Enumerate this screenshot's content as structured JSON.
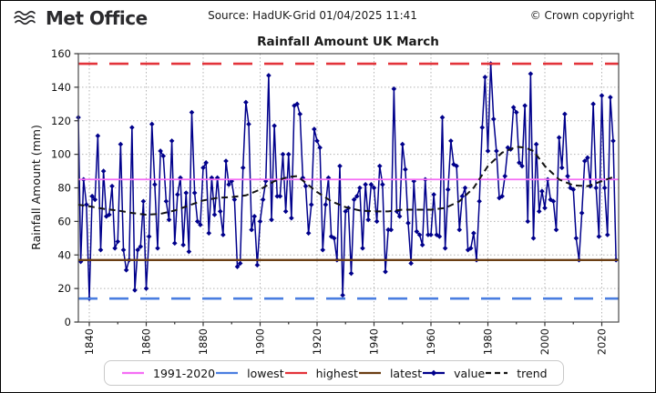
{
  "header": {
    "logo": "Met Office",
    "source": "Source: HadUK-Grid 01/04/2025 11:41",
    "copyright": "© Crown copyright"
  },
  "chart_data": {
    "type": "line",
    "title": "Rainfall Amount UK March",
    "xlabel": "",
    "ylabel": "Rainfall Amount (mm)",
    "ylim": [
      0,
      160
    ],
    "xlim": [
      1836,
      2026
    ],
    "yticks": [
      0,
      20,
      40,
      60,
      80,
      100,
      120,
      140,
      160
    ],
    "xticks": [
      1840,
      1860,
      1880,
      1900,
      1920,
      1940,
      1960,
      1980,
      2000,
      2020
    ],
    "grid": true,
    "legend_position": "bottom",
    "reference_lines": [
      {
        "label": "1991-2020",
        "value": 85,
        "color": "#f56ef5",
        "style": "solid"
      },
      {
        "label": "lowest",
        "value": 14,
        "color": "#4a7ee0",
        "style": "dashed"
      },
      {
        "label": "highest",
        "value": 154,
        "color": "#e3333a",
        "style": "dashed"
      },
      {
        "label": "latest",
        "value": 37,
        "color": "#6b3e13",
        "style": "solid"
      }
    ],
    "series": [
      {
        "name": "value",
        "color": "#00008b",
        "style": "solid",
        "marker": "diamond",
        "x_start": 1836,
        "x_end": 2025,
        "values": [
          122,
          36,
          85,
          70,
          14,
          75,
          73,
          111,
          43,
          90,
          63,
          64,
          81,
          44,
          48,
          106,
          43,
          31,
          37,
          116,
          19,
          43,
          45,
          72,
          20,
          51,
          118,
          82,
          44,
          102,
          99,
          72,
          61,
          108,
          47,
          76,
          86,
          46,
          77,
          42,
          125,
          77,
          60,
          58,
          92,
          95,
          53,
          86,
          64,
          86,
          66,
          52,
          96,
          82,
          84,
          73,
          33,
          35,
          92,
          131,
          118,
          55,
          63,
          34,
          60,
          73,
          84,
          147,
          61,
          117,
          75,
          75,
          100,
          66,
          100,
          62,
          129,
          130,
          124,
          86,
          81,
          53,
          70,
          115,
          108,
          104,
          43,
          70,
          86,
          51,
          50,
          37,
          93,
          16,
          66,
          68,
          29,
          73,
          75,
          80,
          44,
          82,
          61,
          82,
          80,
          60,
          93,
          82,
          30,
          55,
          55,
          139,
          66,
          63,
          106,
          91,
          59,
          35,
          84,
          54,
          52,
          46,
          85,
          52,
          52,
          76,
          52,
          51,
          122,
          44,
          79,
          108,
          94,
          93,
          55,
          75,
          80,
          43,
          44,
          53,
          37,
          72,
          116,
          146,
          102,
          154,
          121,
          102,
          74,
          75,
          87,
          104,
          103,
          128,
          125,
          95,
          93,
          129,
          60,
          148,
          50,
          106,
          66,
          78,
          68,
          85,
          73,
          72,
          55,
          110,
          92,
          124,
          87,
          80,
          79,
          50,
          37,
          65,
          96,
          98,
          81,
          130,
          80,
          51,
          135,
          80,
          52,
          134,
          108,
          37
        ]
      },
      {
        "name": "trend",
        "color": "#141414",
        "style": "dashed",
        "marker": "none",
        "x": [
          1836,
          1840,
          1845,
          1850,
          1855,
          1860,
          1865,
          1870,
          1875,
          1880,
          1885,
          1890,
          1895,
          1900,
          1905,
          1910,
          1913,
          1916,
          1920,
          1925,
          1930,
          1935,
          1940,
          1945,
          1950,
          1955,
          1960,
          1965,
          1970,
          1975,
          1980,
          1985,
          1990,
          1993,
          1996,
          2000,
          2005,
          2010,
          2015,
          2020,
          2025
        ],
        "values": [
          70,
          69,
          67.5,
          66.5,
          65,
          64,
          64.5,
          66.5,
          69.5,
          72.5,
          74,
          74.5,
          75.5,
          79,
          84,
          86.5,
          87,
          83,
          77.5,
          72,
          68.5,
          66.5,
          66,
          66,
          67,
          67,
          67,
          68,
          72,
          80,
          93,
          101,
          104.5,
          104,
          102,
          93,
          85,
          81.5,
          81,
          84,
          87
        ]
      }
    ]
  },
  "legend": {
    "items": [
      {
        "label": "1991-2020",
        "color": "#f56ef5",
        "swatch": "solid"
      },
      {
        "label": "lowest",
        "color": "#4a7ee0",
        "swatch": "solid"
      },
      {
        "label": "highest",
        "color": "#e3333a",
        "swatch": "solid"
      },
      {
        "label": "latest",
        "color": "#6b3e13",
        "swatch": "solid"
      },
      {
        "label": "value",
        "color": "#00008b",
        "swatch": "marker"
      },
      {
        "label": "trend",
        "color": "#141414",
        "swatch": "dashed"
      }
    ]
  }
}
